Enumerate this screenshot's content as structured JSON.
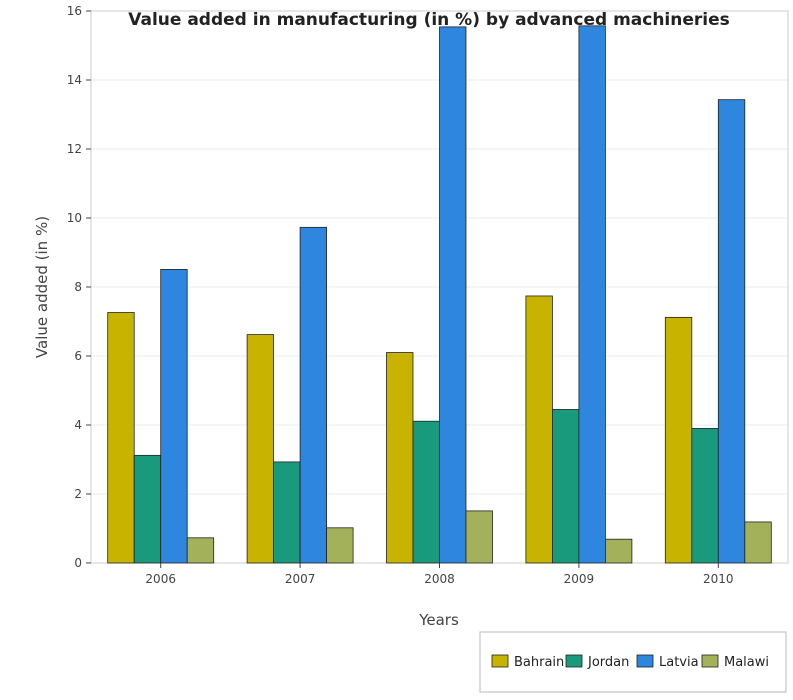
{
  "chart_data": {
    "type": "bar",
    "title": "Value added in manufacturing (in %) by advanced machineries",
    "xlabel": "Years",
    "ylabel": "Value added (in %)",
    "categories": [
      "2006",
      "2007",
      "2008",
      "2009",
      "2010"
    ],
    "ylim": [
      0,
      16
    ],
    "yticks": [
      0,
      2,
      4,
      6,
      8,
      10,
      12,
      14,
      16
    ],
    "grid": true,
    "legend_position": "bottom-right",
    "series": [
      {
        "name": "Bahrain",
        "color": "#c8b400",
        "values": [
          7.26,
          6.62,
          6.1,
          7.74,
          7.12
        ]
      },
      {
        "name": "Jordan",
        "color": "#1a9a7c",
        "values": [
          3.12,
          2.93,
          4.11,
          4.45,
          3.9
        ]
      },
      {
        "name": "Latvia",
        "color": "#2e86de",
        "values": [
          8.51,
          9.73,
          15.54,
          15.57,
          13.43
        ]
      },
      {
        "name": "Malawi",
        "color": "#a3b15b",
        "values": [
          0.73,
          1.02,
          1.51,
          0.69,
          1.19
        ]
      }
    ]
  }
}
